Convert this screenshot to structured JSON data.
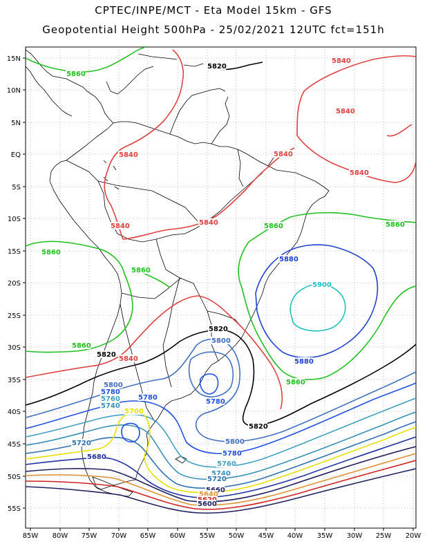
{
  "header": {
    "title_line1": "CPTEC/INPE/MCT  -  Eta Model 15km  -  GFS",
    "title_line2": "Geopotential Height 500hPa  -  25/02/2021 12UTC fct=151h"
  },
  "map": {
    "lat_labels": [
      "15N",
      "10N",
      "5N",
      "EQ",
      "5S",
      "10S",
      "15S",
      "20S",
      "25S",
      "30S",
      "35S",
      "40S",
      "45S",
      "50S",
      "55S"
    ],
    "lon_labels": [
      "85W",
      "80W",
      "75W",
      "70W",
      "65W",
      "60W",
      "55W",
      "50W",
      "45W",
      "40W",
      "35W",
      "30W",
      "25W",
      "20W"
    ]
  },
  "contours": {
    "colors": {
      "c5660": "#202060",
      "c5680": "#2030a0",
      "c5700": "#e8e000",
      "c5720": "#3070b0",
      "c5740": "#3890b8",
      "c5760": "#40a0c0",
      "c5780": "#2050e0",
      "c5800": "#4070c0",
      "c5820": "#000000",
      "c5840": "#e04040",
      "c5860": "#20c020",
      "c5880": "#2040d0",
      "c5900": "#20c0c0",
      "c5620": "#d02020",
      "c5640": "#e09030"
    },
    "labels": {
      "l5860_a": "5860",
      "l5820_a": "5820",
      "l5840_a": "5840",
      "l5840_b": "5840",
      "l5840_c": "5840",
      "l5840_d": "5840",
      "l5840_e": "5840",
      "l5840_f": "5840",
      "l5840_g": "5840",
      "l5840_h": "5840",
      "l5860_b": "5860",
      "l5860_c": "5860",
      "l5860_d": "5860",
      "l5860_e": "5860",
      "l5860_f": "5860",
      "l5860_g": "5860",
      "l5880_a": "5880",
      "l5900_a": "5900",
      "l5880_b": "5880",
      "l5820_b": "5820",
      "l5800_a": "5800",
      "l5780_a": "5780",
      "l5820_c": "5820",
      "l5820_d": "5820",
      "l5800_b": "5800",
      "l5780_b": "5780",
      "l5760_a": "5760",
      "l5740_a": "5740",
      "l5700_a": "5700",
      "l5720_a": "5720",
      "l5680_a": "5680",
      "l5800_c": "5800",
      "l5780_c": "5780",
      "l5760_b": "5760",
      "l5740_b": "5740",
      "l5720_b": "5720",
      "l5660_a": "5660",
      "l5640_a": "5640",
      "l5620_a": "5620",
      "l5600_a": "5600",
      "l5780_d": "5780"
    }
  }
}
